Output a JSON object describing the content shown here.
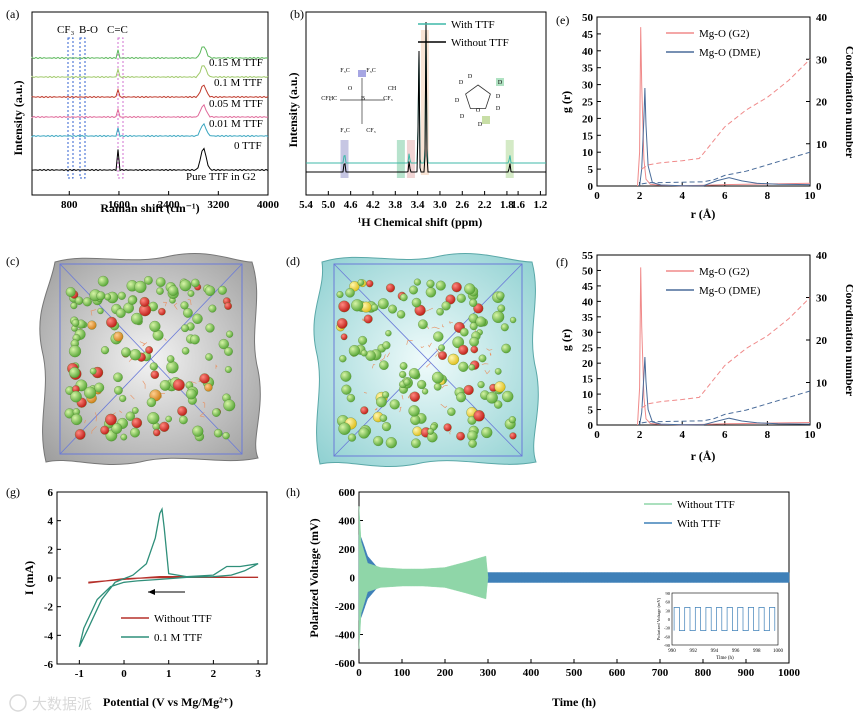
{
  "panels": {
    "a": "(a)",
    "b": "(b)",
    "c": "(c)",
    "d": "(d)",
    "e": "(e)",
    "f": "(f)",
    "g": "(g)",
    "h": "(h)"
  },
  "watermark": "大数据派",
  "chart_data": [
    {
      "id": "a",
      "type": "line",
      "title": "",
      "xlabel": "Raman shift (cm⁻¹)",
      "ylabel": "Intensity (a.u.)",
      "xlim": [
        200,
        4000
      ],
      "xticks": [
        800,
        1600,
        2400,
        3200,
        4000
      ],
      "annotations": [
        "CF₃",
        "B-O",
        "C=C"
      ],
      "series": [
        {
          "name": "0.15 M TTF",
          "color": "#5cb85c"
        },
        {
          "name": "0.1 M TTF",
          "color": "#a0c96a"
        },
        {
          "name": "0.05 M TTF",
          "color": "#c0392b"
        },
        {
          "name": "0.01 M TTF",
          "color": "#e06a9a"
        },
        {
          "name": "0 TTF",
          "color": "#3aa6c0"
        },
        {
          "name": "Pure TTF in G2",
          "color": "#000000"
        }
      ]
    },
    {
      "id": "b",
      "type": "line",
      "xlabel": "¹H Chemical shift (ppm)",
      "ylabel": "Intensity (a.u.)",
      "xlim": [
        5.4,
        1.1
      ],
      "xticks": [
        5.4,
        5.0,
        4.6,
        4.2,
        3.8,
        3.4,
        3.0,
        2.6,
        2.2,
        1.8,
        1.6,
        1.2
      ],
      "xtick_labels": [
        "5.4",
        "5.0",
        "4.6",
        "4.2",
        "3.8",
        "3.4",
        "3.0",
        "2.6",
        "2.2",
        "1.8",
        "1.6",
        "1.2"
      ],
      "series": [
        {
          "name": "With TTF",
          "color": "#3fb8a8"
        },
        {
          "name": "Without TTF",
          "color": "#000000"
        }
      ],
      "peaks_ppm": [
        4.71,
        3.55,
        3.38,
        3.25,
        1.75
      ],
      "structure_labels": {
        "anion": [
          "F₃C",
          "F₃C",
          "CF₃",
          "CF₃",
          "B",
          "O",
          "HC",
          "CH",
          "F₃C",
          "CF₃"
        ],
        "ring": [
          "D",
          "D",
          "D",
          "D",
          "D",
          "D",
          "D",
          "D",
          "O"
        ]
      }
    },
    {
      "id": "e",
      "type": "line",
      "xlabel": "r (Å)",
      "ylabel": "g (r)",
      "y2label": "Coordination number",
      "xlim": [
        0,
        10
      ],
      "ylim": [
        0,
        50
      ],
      "y2lim": [
        0,
        40
      ],
      "xticks": [
        0,
        2,
        4,
        6,
        8,
        10
      ],
      "yticks": [
        0,
        5,
        10,
        15,
        20,
        25,
        30,
        35,
        40,
        45,
        50
      ],
      "y2ticks": [
        0,
        10,
        20,
        30,
        40
      ],
      "series": [
        {
          "name": "Mg-O (G2)",
          "color": "#f08a8a",
          "x": [
            1.9,
            2.0,
            2.05,
            2.1,
            2.2,
            2.3,
            2.5,
            3,
            4,
            5,
            6,
            7,
            8,
            9,
            10
          ],
          "y": [
            0,
            10,
            47,
            30,
            8,
            2,
            0.5,
            0.2,
            0.1,
            0.2,
            0.4,
            0.5,
            0.6,
            0.7,
            0.8
          ]
        },
        {
          "name": "Mg-O (DME)",
          "color": "#4a6c9a",
          "x": [
            2.0,
            2.1,
            2.2,
            2.25,
            2.3,
            2.4,
            2.6,
            3,
            4,
            5,
            5.6,
            6.2,
            6.8,
            7.5,
            8.5,
            10
          ],
          "y": [
            0,
            5,
            20,
            29,
            18,
            6,
            1,
            0.3,
            0.1,
            0.1,
            1.5,
            2.5,
            1.5,
            0.8,
            0.5,
            0.4
          ]
        }
      ],
      "cn_series": [
        {
          "name": "CN G2",
          "color": "#f08a8a",
          "x": [
            2.1,
            2.4,
            3,
            4,
            4.8,
            5.2,
            6,
            7,
            8,
            9,
            10
          ],
          "y": [
            4,
            5,
            5.5,
            6,
            6.5,
            9,
            14,
            18,
            21,
            25,
            30
          ]
        },
        {
          "name": "CN DME",
          "color": "#4a6c9a",
          "x": [
            2.1,
            2.5,
            3,
            4,
            5,
            5.5,
            6,
            7,
            8,
            9,
            10
          ],
          "y": [
            0.5,
            0.8,
            0.8,
            0.9,
            1,
            1.5,
            2.5,
            3.5,
            5,
            6.5,
            8
          ]
        }
      ]
    },
    {
      "id": "f",
      "type": "line",
      "xlabel": "r (Å)",
      "ylabel": "g (r)",
      "y2label": "Coordination number",
      "xlim": [
        0,
        10
      ],
      "ylim": [
        0,
        55
      ],
      "y2lim": [
        0,
        40
      ],
      "xticks": [
        0,
        2,
        4,
        6,
        8,
        10
      ],
      "yticks": [
        0,
        5,
        10,
        15,
        20,
        25,
        30,
        35,
        40,
        45,
        50,
        55
      ],
      "y2ticks": [
        0,
        10,
        20,
        30,
        40
      ],
      "series": [
        {
          "name": "Mg-O (G2)",
          "color": "#f08a8a",
          "x": [
            1.9,
            2.0,
            2.05,
            2.1,
            2.2,
            2.3,
            2.5,
            3,
            4,
            5,
            6,
            7,
            8,
            9,
            10
          ],
          "y": [
            0,
            12,
            51,
            32,
            9,
            2,
            0.5,
            0.2,
            0.1,
            0.2,
            0.4,
            0.5,
            0.6,
            0.7,
            0.8
          ]
        },
        {
          "name": "Mg-O (DME)",
          "color": "#4a6c9a",
          "x": [
            2.0,
            2.1,
            2.2,
            2.25,
            2.3,
            2.4,
            2.6,
            3,
            4,
            5,
            5.6,
            6.2,
            6.8,
            7.5,
            8.5,
            10
          ],
          "y": [
            0,
            4,
            16,
            22,
            14,
            5,
            1,
            0.3,
            0.1,
            0.1,
            1.2,
            2.2,
            1.3,
            0.7,
            0.4,
            0.3
          ]
        }
      ],
      "cn_series": [
        {
          "name": "CN G2",
          "color": "#f08a8a",
          "x": [
            2.1,
            2.4,
            3,
            4,
            4.8,
            5.2,
            6,
            7,
            8,
            9,
            10
          ],
          "y": [
            4,
            5,
            5.5,
            6,
            6.5,
            9,
            14,
            18,
            21,
            25,
            30
          ]
        },
        {
          "name": "CN DME",
          "color": "#4a6c9a",
          "x": [
            2.1,
            2.5,
            3,
            4,
            5,
            5.5,
            6,
            7,
            8,
            9,
            10
          ],
          "y": [
            0.5,
            0.8,
            0.8,
            0.9,
            1,
            1.5,
            2.5,
            3.5,
            5,
            6.5,
            8
          ]
        }
      ]
    },
    {
      "id": "g",
      "type": "line",
      "xlabel": "Potential (V vs Mg/Mg²⁺)",
      "ylabel": "I (mA)",
      "xlim": [
        -1.5,
        3.2
      ],
      "ylim": [
        -6,
        6
      ],
      "xticks": [
        -1,
        0,
        1,
        2,
        3
      ],
      "yticks": [
        -6,
        -4,
        -2,
        0,
        2,
        4,
        6
      ],
      "series": [
        {
          "name": "Without TTF",
          "color": "#b5302a",
          "x": [
            -0.8,
            -0.4,
            0,
            0.4,
            0.6,
            0.8,
            1.2,
            2,
            3,
            2.6,
            2,
            1.2,
            0.6,
            0,
            -0.4,
            -0.8
          ],
          "y": [
            -0.3,
            -0.2,
            -0.1,
            0,
            0.05,
            0.1,
            0.1,
            0.05,
            0.05,
            0.05,
            0.05,
            0.05,
            0.02,
            -0.05,
            -0.2,
            -0.35
          ]
        },
        {
          "name": "0.1 M TTF",
          "color": "#2f8f7a",
          "x": [
            -1.0,
            -0.8,
            -0.5,
            -0.2,
            0.2,
            0.5,
            0.7,
            0.8,
            0.85,
            0.9,
            1.0,
            1.4,
            2.0,
            2.3,
            2.6,
            3.0,
            2.7,
            2.4,
            2.0,
            1.4,
            0.8,
            0.3,
            0,
            -0.3,
            -0.6,
            -0.9,
            -1.0
          ],
          "y": [
            -4.8,
            -3.5,
            -1.5,
            -0.3,
            0.2,
            1.0,
            2.8,
            4.5,
            4.8,
            3.5,
            0.3,
            0.1,
            0.2,
            0.8,
            0.8,
            1.0,
            0.5,
            0.2,
            0.1,
            0.05,
            -0.1,
            -0.2,
            -0.3,
            -0.6,
            -1.5,
            -3.5,
            -4.8
          ]
        }
      ],
      "arrow_direction": "left"
    },
    {
      "id": "h",
      "type": "line",
      "xlabel": "Time (h)",
      "ylabel": "Polarized Voltage (mV)",
      "xlim": [
        0,
        1000
      ],
      "ylim": [
        -600,
        600
      ],
      "xticks": [
        0,
        100,
        200,
        300,
        400,
        500,
        600,
        700,
        800,
        900,
        1000
      ],
      "yticks": [
        -600,
        -400,
        -200,
        0,
        200,
        400,
        600
      ],
      "series": [
        {
          "name": "Without TTF",
          "color": "#8fd6a8",
          "x": [
            0,
            5,
            20,
            50,
            100,
            150,
            200,
            250,
            295,
            300
          ],
          "amplitude_mV": [
            500,
            250,
            100,
            70,
            60,
            60,
            70,
            110,
            150,
            0
          ]
        },
        {
          "name": "With TTF",
          "color": "#3f80b8",
          "x": [
            0,
            5,
            20,
            50,
            100,
            200,
            300,
            500,
            700,
            1000
          ],
          "amplitude_mV": [
            300,
            280,
            150,
            45,
            35,
            35,
            35,
            35,
            35,
            35
          ]
        }
      ],
      "inset": {
        "xlabel": "Time (h)",
        "ylabel": "Polarized Voltage (mV)",
        "xlim": [
          990,
          1000
        ],
        "xticks": [
          990,
          992,
          994,
          996,
          998,
          1000
        ],
        "yticks": [
          -90,
          -60,
          -30,
          0,
          30,
          60,
          90
        ],
        "amplitude_mV": 40,
        "period_h": 1
      }
    }
  ]
}
